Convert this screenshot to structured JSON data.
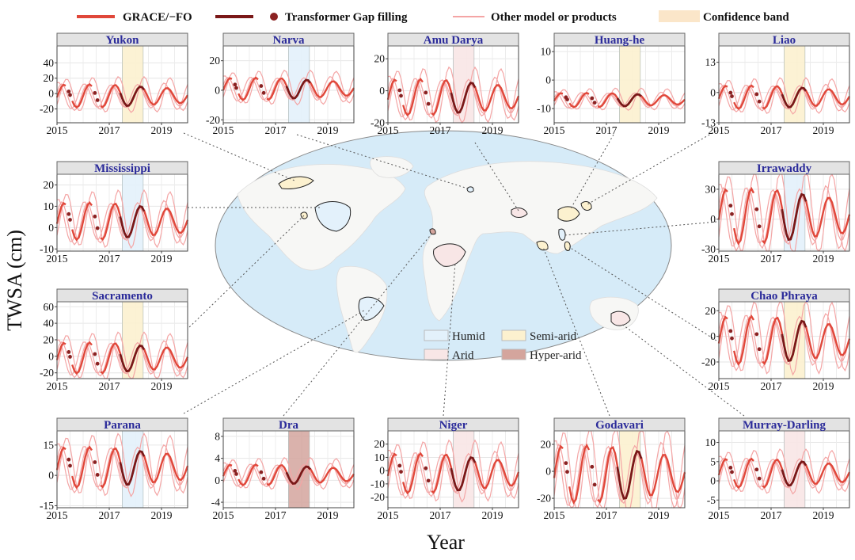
{
  "legend": {
    "grace": "GRACE/−FO",
    "transformer": "Transformer Gap filling",
    "other": "Other model or products",
    "band": "Confidence band"
  },
  "axis": {
    "ylabel": "TWSA (cm)",
    "xlabel": "Year"
  },
  "climate_zones": [
    "Humid",
    "Semi-arid",
    "Arid",
    "Hyper-arid"
  ],
  "colors": {
    "grace": "#e0473a",
    "transformer": "#7a1818",
    "other": "#f4a5a5",
    "Humid": "#e3f1fb",
    "Semi-arid": "#fcf1cf",
    "Arid": "#f8e6e6",
    "Hyper-arid": "#d4a59d",
    "title_text": "#2b2b9a",
    "ocean": "#d6ebf8"
  },
  "chart_data": [
    {
      "type": "line",
      "title": "Yukon",
      "zone": "Semi-arid",
      "xlim": [
        2015,
        2020
      ],
      "ylim": [
        -38,
        62
      ],
      "yticks": [
        -20,
        0,
        20,
        40
      ],
      "xticks": [
        2015,
        2017,
        2019
      ],
      "amp": 12,
      "base": -3,
      "gap": [
        2017.5,
        2018.3
      ],
      "series": [
        {
          "name": "GRACE/−FO"
        },
        {
          "name": "Transformer Gap filling"
        },
        {
          "name": "Other model or products"
        }
      ]
    },
    {
      "type": "line",
      "title": "Narva",
      "zone": "Humid",
      "xlim": [
        2015,
        2020
      ],
      "ylim": [
        -22,
        30
      ],
      "yticks": [
        -20,
        0,
        20
      ],
      "xticks": [
        2015,
        2017,
        2019
      ],
      "amp": 6,
      "base": 1,
      "gap": [
        2017.5,
        2018.3
      ],
      "series": [
        {
          "name": "GRACE/−FO"
        },
        {
          "name": "Transformer Gap filling"
        },
        {
          "name": "Other model or products"
        }
      ]
    },
    {
      "type": "line",
      "title": "Amu Darya",
      "zone": "Arid",
      "xlim": [
        2015,
        2020
      ],
      "ylim": [
        -20,
        28
      ],
      "yticks": [
        -20,
        0,
        20
      ],
      "xticks": [
        2015,
        2017,
        2019
      ],
      "amp": 9,
      "base": -4,
      "gap": [
        2017.5,
        2018.3
      ],
      "series": [
        {
          "name": "GRACE/−FO"
        },
        {
          "name": "Transformer Gap filling"
        },
        {
          "name": "Other model or products"
        }
      ]
    },
    {
      "type": "line",
      "title": "Huang-he",
      "zone": "Semi-arid",
      "xlim": [
        2015,
        2020
      ],
      "ylim": [
        -15,
        12
      ],
      "yticks": [
        -10,
        0,
        10
      ],
      "xticks": [
        2015,
        2017,
        2019
      ],
      "amp": 2,
      "base": -7,
      "gap": [
        2017.5,
        2018.3
      ],
      "series": [
        {
          "name": "GRACE/−FO"
        },
        {
          "name": "Transformer Gap filling"
        },
        {
          "name": "Other model or products"
        }
      ]
    },
    {
      "type": "line",
      "title": "Liao",
      "zone": "Semi-arid",
      "xlim": [
        2015,
        2020
      ],
      "ylim": [
        -13,
        20
      ],
      "yticks": [
        -13,
        0,
        13
      ],
      "xticks": [
        2015,
        2017,
        2019
      ],
      "amp": 4,
      "base": -2,
      "gap": [
        2017.5,
        2018.3
      ],
      "series": [
        {
          "name": "GRACE/−FO"
        },
        {
          "name": "Transformer Gap filling"
        },
        {
          "name": "Other model or products"
        }
      ]
    },
    {
      "type": "line",
      "title": "Mississippi",
      "zone": "Humid",
      "xlim": [
        2015,
        2020
      ],
      "ylim": [
        -11,
        25
      ],
      "yticks": [
        -10,
        0,
        10,
        20
      ],
      "xticks": [
        2015,
        2017,
        2019
      ],
      "amp": 7,
      "base": 3,
      "gap": [
        2017.5,
        2018.3
      ],
      "series": [
        {
          "name": "GRACE/−FO"
        },
        {
          "name": "Transformer Gap filling"
        },
        {
          "name": "Other model or products"
        }
      ]
    },
    {
      "type": "line",
      "title": "Irrawaddy",
      "zone": "Humid",
      "xlim": [
        2015,
        2020
      ],
      "ylim": [
        -32,
        45
      ],
      "yticks": [
        -30,
        0,
        30
      ],
      "xticks": [
        2015,
        2017,
        2019
      ],
      "amp": 22,
      "base": 3,
      "gap": [
        2017.5,
        2018.3
      ],
      "series": [
        {
          "name": "GRACE/−FO"
        },
        {
          "name": "Transformer Gap filling"
        },
        {
          "name": "Other model or products"
        }
      ]
    },
    {
      "type": "line",
      "title": "Sacramento",
      "zone": "Semi-arid",
      "xlim": [
        2015,
        2020
      ],
      "ylim": [
        -27,
        66
      ],
      "yticks": [
        -20,
        0,
        20,
        40,
        60
      ],
      "xticks": [
        2015,
        2017,
        2019
      ],
      "amp": 15,
      "base": -2,
      "gap": [
        2017.5,
        2018.3
      ],
      "series": [
        {
          "name": "GRACE/−FO"
        },
        {
          "name": "Transformer Gap filling"
        },
        {
          "name": "Other model or products"
        }
      ]
    },
    {
      "type": "line",
      "title": "Chao Phraya",
      "zone": "Semi-arid",
      "xlim": [
        2015,
        2020
      ],
      "ylim": [
        -33,
        27
      ],
      "yticks": [
        -20,
        0,
        20
      ],
      "xticks": [
        2015,
        2017,
        2019
      ],
      "amp": 15,
      "base": -3,
      "gap": [
        2017.5,
        2018.3
      ],
      "series": [
        {
          "name": "GRACE/−FO"
        },
        {
          "name": "Transformer Gap filling"
        },
        {
          "name": "Other model or products"
        }
      ]
    },
    {
      "type": "line",
      "title": "Parana",
      "zone": "Humid",
      "xlim": [
        2015,
        2020
      ],
      "ylim": [
        -16,
        22
      ],
      "yticks": [
        -15,
        0,
        15
      ],
      "xticks": [
        2015,
        2017,
        2019
      ],
      "amp": 8,
      "base": 4,
      "gap": [
        2017.5,
        2018.3
      ],
      "series": [
        {
          "name": "GRACE/−FO"
        },
        {
          "name": "Transformer Gap filling"
        },
        {
          "name": "Other model or products"
        }
      ]
    },
    {
      "type": "line",
      "title": "Dra",
      "zone": "Hyper-arid",
      "xlim": [
        2015,
        2020
      ],
      "ylim": [
        -5,
        9
      ],
      "yticks": [
        -4,
        0,
        4,
        8
      ],
      "xticks": [
        2015,
        2017,
        2019
      ],
      "amp": 1.5,
      "base": 1,
      "gap": [
        2017.5,
        2018.3
      ],
      "series": [
        {
          "name": "GRACE/−FO"
        },
        {
          "name": "Transformer Gap filling"
        },
        {
          "name": "Other model or products"
        }
      ]
    },
    {
      "type": "line",
      "title": "Niger",
      "zone": "Arid",
      "xlim": [
        2015,
        2020
      ],
      "ylim": [
        -28,
        30
      ],
      "yticks": [
        -20,
        -10,
        0,
        10,
        20
      ],
      "xticks": [
        2015,
        2017,
        2019
      ],
      "amp": 12,
      "base": -2,
      "gap": [
        2017.5,
        2018.3
      ],
      "series": [
        {
          "name": "GRACE/−FO"
        },
        {
          "name": "Transformer Gap filling"
        },
        {
          "name": "Other model or products"
        }
      ]
    },
    {
      "type": "line",
      "title": "Godavari",
      "zone": "Semi-arid",
      "xlim": [
        2015,
        2020
      ],
      "ylim": [
        -27,
        30
      ],
      "yticks": [
        -20,
        0,
        20
      ],
      "xticks": [
        2015,
        2017,
        2019
      ],
      "amp": 17,
      "base": -2,
      "gap": [
        2017.5,
        2018.3
      ],
      "series": [
        {
          "name": "GRACE/−FO"
        },
        {
          "name": "Transformer Gap filling"
        },
        {
          "name": "Other model or products"
        }
      ]
    },
    {
      "type": "line",
      "title": "Murray-Darling",
      "zone": "Arid",
      "xlim": [
        2015,
        2020
      ],
      "ylim": [
        -7,
        13
      ],
      "yticks": [
        -5,
        0,
        5,
        10
      ],
      "xticks": [
        2015,
        2017,
        2019
      ],
      "amp": 3,
      "base": 2,
      "gap": [
        2017.5,
        2018.3
      ],
      "series": [
        {
          "name": "GRACE/−FO"
        },
        {
          "name": "Transformer Gap filling"
        },
        {
          "name": "Other model or products"
        }
      ]
    }
  ]
}
